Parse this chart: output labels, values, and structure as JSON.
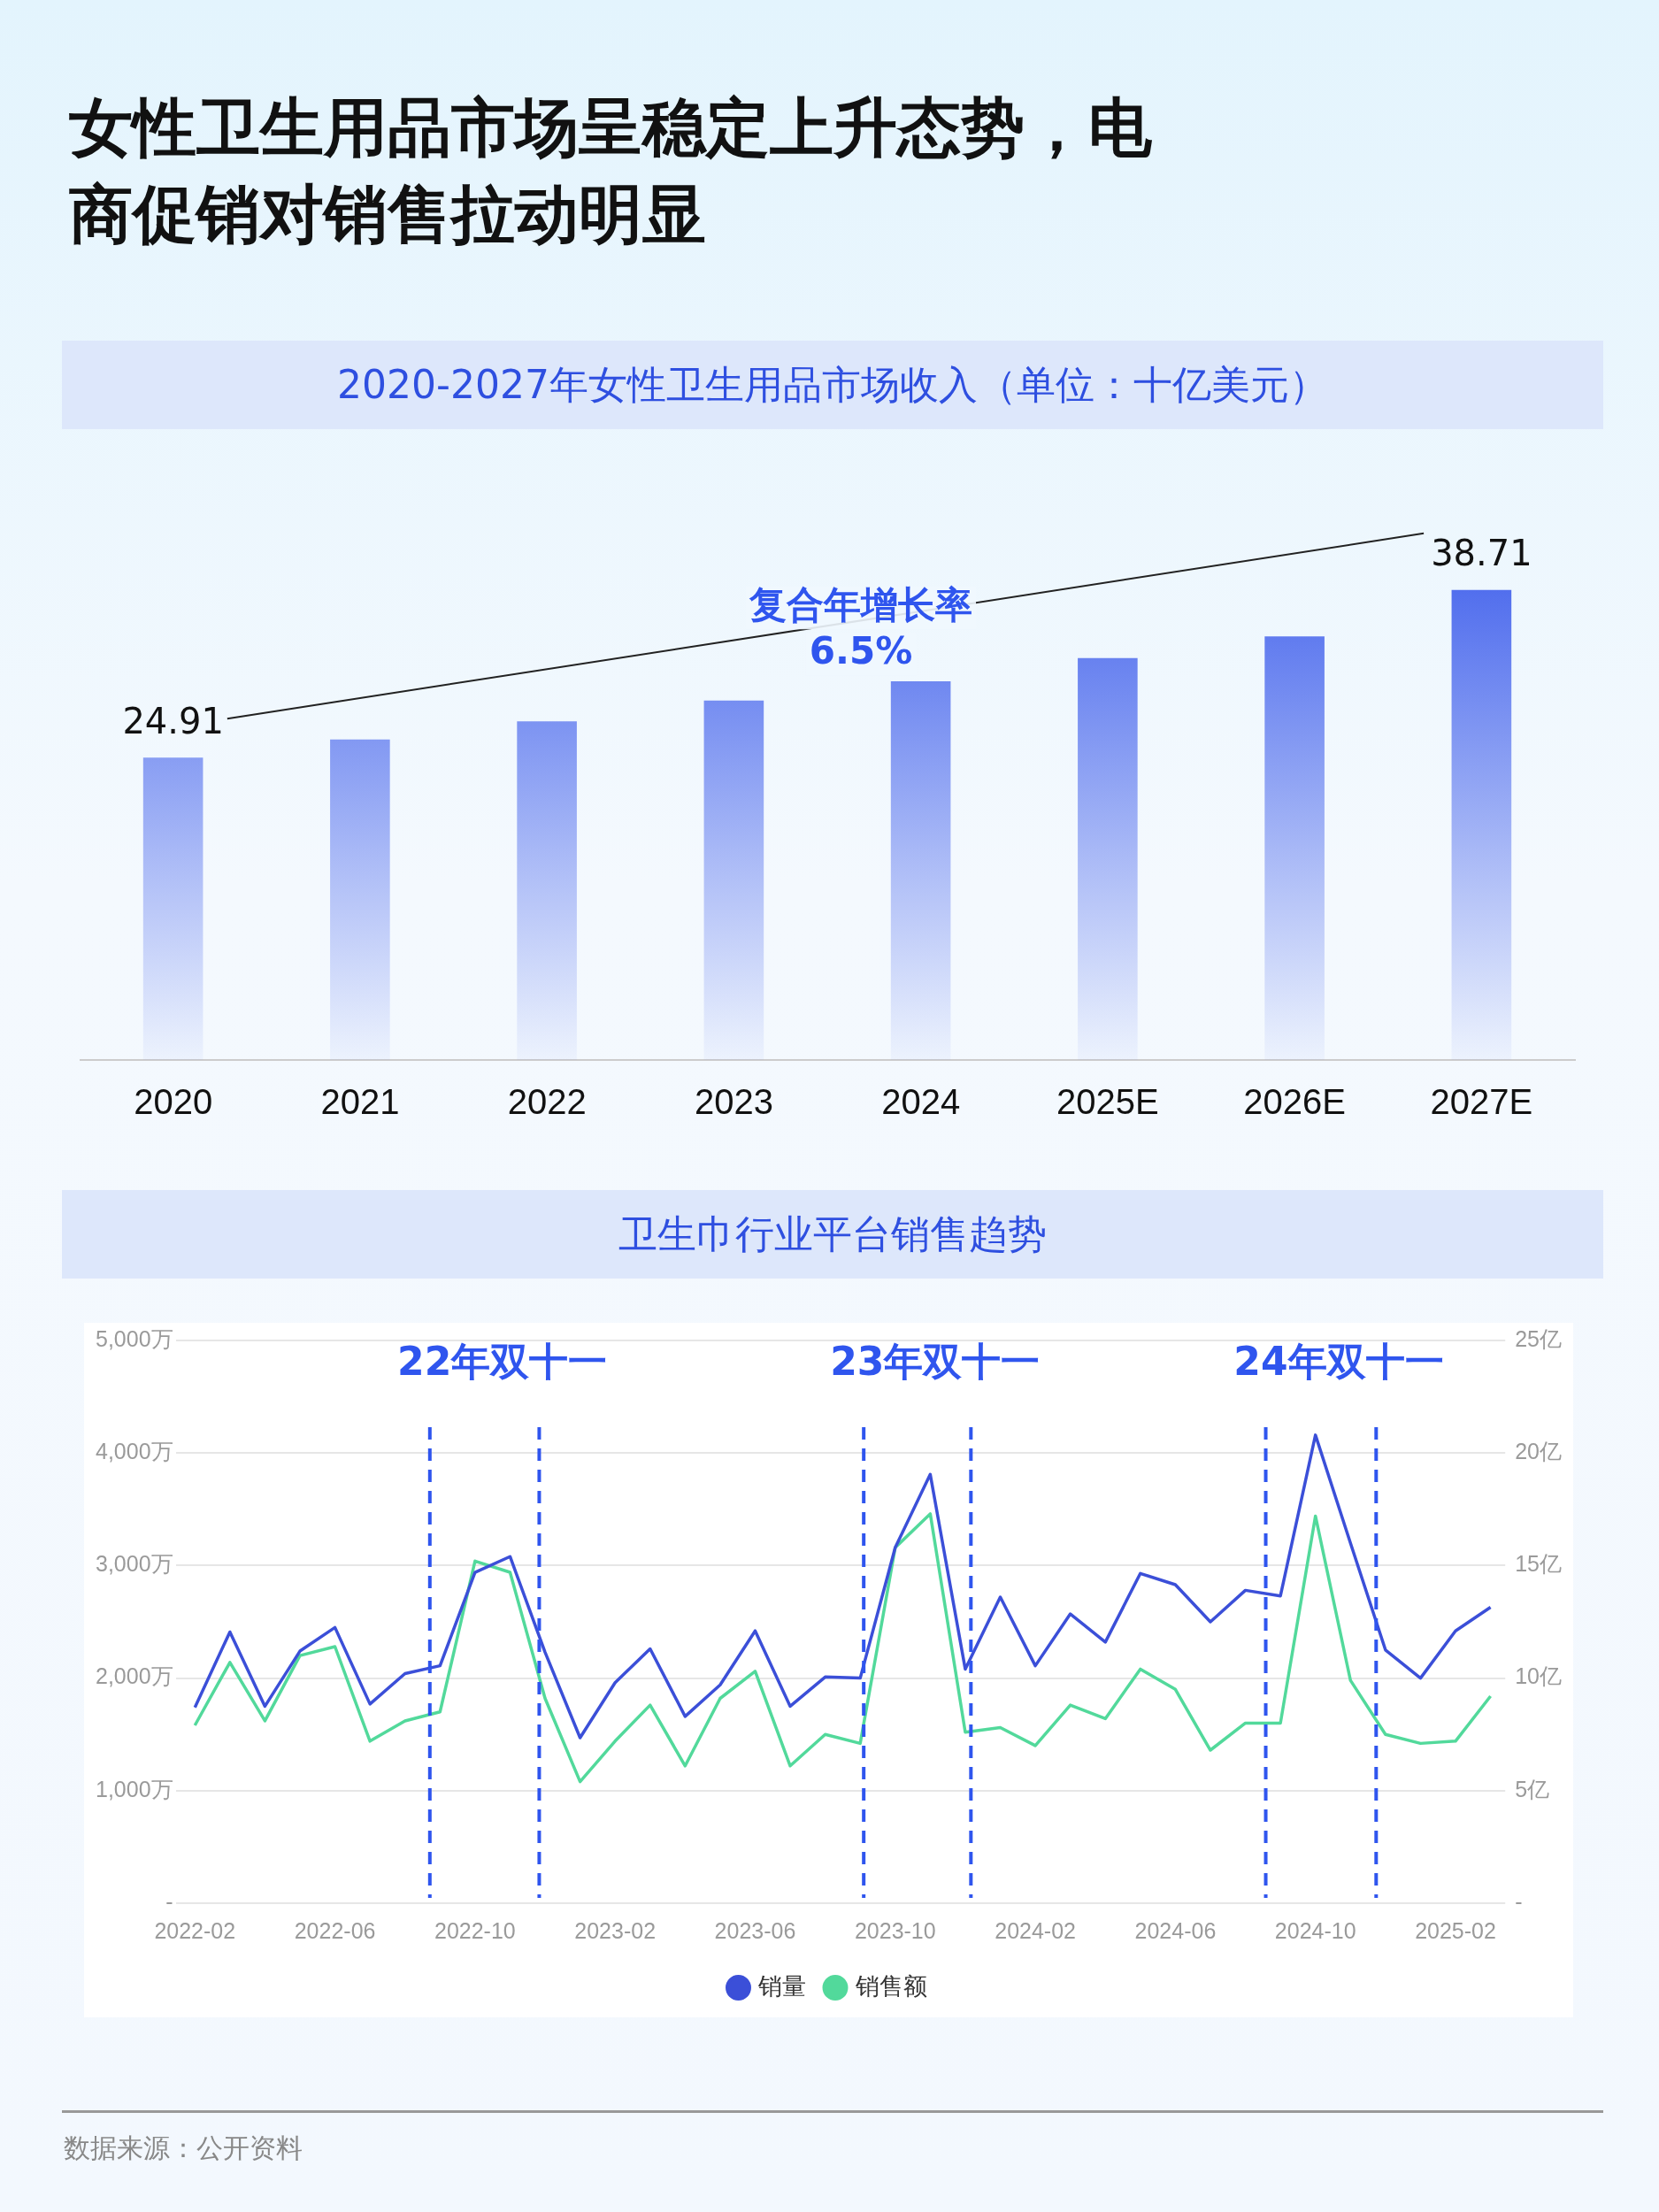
{
  "chart_data": [
    {
      "type": "bar",
      "title": "女性卫生用品市场呈稳定上升态势，电商促销对销售拉动明显",
      "subtitle": "2020-2027年女性卫生用品市场收入（单位：十亿美元）",
      "categories": [
        "2020",
        "2021",
        "2022",
        "2023",
        "2024",
        "2025E",
        "2026E",
        "2027E"
      ],
      "values": [
        24.91,
        26.4,
        27.9,
        29.6,
        31.2,
        33.1,
        34.9,
        38.71
      ],
      "value_labels": [
        "24.91",
        null,
        null,
        null,
        null,
        null,
        null,
        "38.71"
      ],
      "color": "#3152ea",
      "tick_labels": "x",
      "annotations": [
        "复合年增长率\n6.5%"
      ]
    },
    {
      "type": "line",
      "title": "卫生巾行业平台销售趋势",
      "x": [
        "2022-02",
        "2022-03",
        "2022-04",
        "2022-05",
        "2022-06",
        "2022-07",
        "2022-08",
        "2022-09",
        "2022-10",
        "2022-11",
        "2022-12",
        "2023-01",
        "2023-02",
        "2023-03",
        "2023-04",
        "2023-05",
        "2023-06",
        "2023-07",
        "2023-08",
        "2023-09",
        "2023-10",
        "2023-11",
        "2023-12",
        "2024-01",
        "2024-02",
        "2024-03",
        "2024-04",
        "2024-05",
        "2024-06",
        "2024-07",
        "2024-08",
        "2024-09",
        "2024-10",
        "2024-11",
        "2024-12",
        "2025-01",
        "2025-02",
        "2025-03"
      ],
      "series": [
        {
          "name": "销量",
          "color": "#3b4fd8",
          "values": [
            1740,
            2410,
            1750,
            2240,
            2450,
            1770,
            2040,
            2110,
            2940,
            3080,
            2230,
            1470,
            1960,
            2260,
            1660,
            1940,
            2420,
            1750,
            2010,
            2000,
            3160,
            3810,
            2080,
            2720,
            2110,
            2570,
            2320,
            2930,
            2830,
            2500,
            2780,
            2730,
            4160,
            3200,
            2250,
            2000,
            2420,
            2630
          ]
        },
        {
          "name": "销售额",
          "color": "#52d99b",
          "axis": "y2",
          "values": [
            7.9,
            10.7,
            8.1,
            11.0,
            11.4,
            7.2,
            8.1,
            8.5,
            15.2,
            14.7,
            9.1,
            5.4,
            7.2,
            8.8,
            6.1,
            9.1,
            10.3,
            6.1,
            7.5,
            7.1,
            15.8,
            17.3,
            7.6,
            7.8,
            7.0,
            8.8,
            8.2,
            10.4,
            9.5,
            6.8,
            8.0,
            8.0,
            17.2,
            9.9,
            7.5,
            7.1,
            7.2,
            9.2
          ]
        }
      ],
      "xlim": [
        "2022-01-15",
        "2025-03-14"
      ],
      "xticks": [
        "2022-02",
        "2022-06",
        "2022-10",
        "2023-02",
        "2023-06",
        "2023-10",
        "2024-02",
        "2024-06",
        "2024-10",
        "2025-02"
      ],
      "ylim": [
        0,
        5000
      ],
      "yticks": [
        {
          "value": 0,
          "label": "-"
        },
        {
          "value": 1000,
          "label": "1,000万"
        },
        {
          "value": 2000,
          "label": "2,000万"
        },
        {
          "value": 3000,
          "label": "3,000万"
        },
        {
          "value": 4000,
          "label": "4,000万"
        },
        {
          "value": 5000,
          "label": "5,000万"
        }
      ],
      "y2lim": [
        0,
        25
      ],
      "y2ticks": [
        {
          "value": 0,
          "label": "-"
        },
        {
          "value": 5,
          "label": "5亿"
        },
        {
          "value": 10,
          "label": "10亿"
        },
        {
          "value": 15,
          "label": "15亿"
        },
        {
          "value": 20,
          "label": "20亿"
        },
        {
          "value": 25,
          "label": "25亿"
        }
      ],
      "grid": "y",
      "legend": "bottom",
      "marker": "none",
      "line_style": "solid",
      "ref_lines": [
        {
          "axis": "x",
          "value": "2022-08-23",
          "color": "#2f55ee",
          "line_style": "dashed"
        },
        {
          "axis": "x",
          "value": "2022-11-26",
          "color": "#2f55ee",
          "line_style": "dashed"
        },
        {
          "axis": "x",
          "value": "2023-09-04",
          "color": "#2f55ee",
          "line_style": "dashed"
        },
        {
          "axis": "x",
          "value": "2023-12-06",
          "color": "#2f55ee",
          "line_style": "dashed"
        },
        {
          "axis": "x",
          "value": "2024-08-19",
          "color": "#2f55ee",
          "line_style": "dashed"
        },
        {
          "axis": "x",
          "value": "2024-11-23",
          "color": "#2f55ee",
          "line_style": "dashed"
        }
      ],
      "annotations": [
        "22年双十一",
        "23年双十一",
        "24年双十一",
        "数据来源：公开资料"
      ]
    }
  ]
}
